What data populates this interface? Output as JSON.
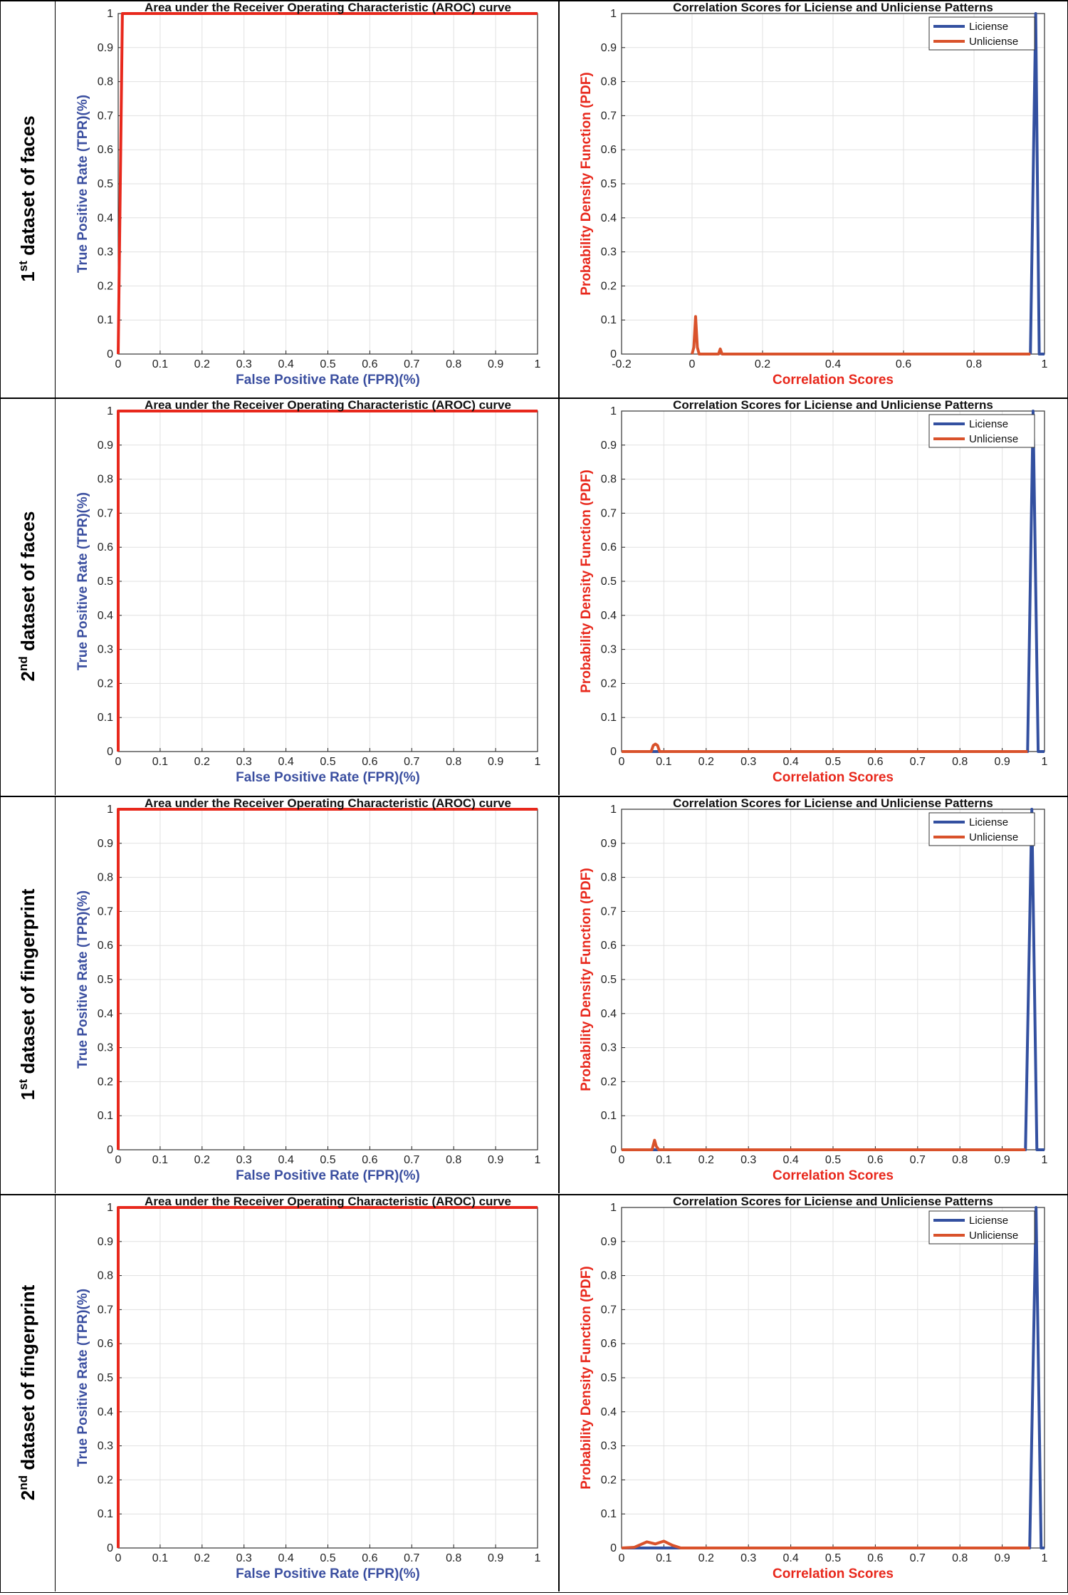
{
  "rows": [
    {
      "label": {
        "ordinal": "1",
        "suffix": "st",
        "rest": " dataset of faces"
      },
      "roc": {
        "type": "line",
        "title": "Area under the Receiver Operating Characteristic (AROC) curve",
        "xlabel": "False Positive Rate (FPR)(%)",
        "ylabel": "True Positive Rate (TPR)(%)",
        "xlim": [
          0,
          1
        ],
        "ylim": [
          0,
          1
        ],
        "xticks": [
          "0",
          "0.1",
          "0.2",
          "0.3",
          "0.4",
          "0.5",
          "0.6",
          "0.7",
          "0.8",
          "0.9",
          "1"
        ],
        "yticks": [
          "0",
          "0.1",
          "0.2",
          "0.3",
          "0.4",
          "0.5",
          "0.6",
          "0.7",
          "0.8",
          "0.9",
          "1"
        ],
        "grid": true,
        "series": [
          {
            "name": "ROC",
            "color": "#e8281c",
            "x": [
              0,
              0.01,
              1
            ],
            "y": [
              0,
              1,
              1
            ]
          }
        ]
      },
      "pdf": {
        "type": "line",
        "title": "Correlation Scores for Liciense and Unliciense Patterns",
        "xlabel": "Correlation Scores",
        "ylabel": "Probability Density Function (PDF)",
        "xlim": [
          -0.2,
          1
        ],
        "ylim": [
          0,
          1
        ],
        "xticks": [
          "-0.2",
          "0",
          "0.2",
          "0.4",
          "0.6",
          "0.8",
          "1"
        ],
        "yticks": [
          "0",
          "0.1",
          "0.2",
          "0.3",
          "0.4",
          "0.5",
          "0.6",
          "0.7",
          "0.8",
          "0.9",
          "1"
        ],
        "grid": true,
        "legend_position": "top-right",
        "series": [
          {
            "name": "Liciense",
            "color": "#3350a0",
            "x": [
              0.96,
              0.975,
              0.985,
              1.0
            ],
            "y": [
              0,
              1.0,
              0,
              0
            ]
          },
          {
            "name": "Unliciense",
            "color": "#d9522b",
            "x": [
              0.0,
              0.005,
              0.01,
              0.015,
              0.02,
              0.075,
              0.08,
              0.085,
              0.96
            ],
            "y": [
              0,
              0.02,
              0.11,
              0.02,
              0,
              0,
              0.015,
              0,
              0
            ]
          }
        ]
      }
    },
    {
      "label": {
        "ordinal": "2",
        "suffix": "nd",
        "rest": " dataset of faces"
      },
      "roc": {
        "type": "line",
        "title": "Area under the Receiver Operating Characteristic (AROC) curve",
        "xlabel": "False Positive Rate (FPR)(%)",
        "ylabel": "True Positive Rate (TPR)(%)",
        "xlim": [
          0,
          1
        ],
        "ylim": [
          0,
          1
        ],
        "xticks": [
          "0",
          "0.1",
          "0.2",
          "0.3",
          "0.4",
          "0.5",
          "0.6",
          "0.7",
          "0.8",
          "0.9",
          "1"
        ],
        "yticks": [
          "0",
          "0.1",
          "0.2",
          "0.3",
          "0.4",
          "0.5",
          "0.6",
          "0.7",
          "0.8",
          "0.9",
          "1"
        ],
        "grid": true,
        "series": [
          {
            "name": "ROC",
            "color": "#e8281c",
            "x": [
              0,
              0,
              1
            ],
            "y": [
              0,
              1,
              1
            ]
          }
        ]
      },
      "pdf": {
        "type": "line",
        "title": "Correlation Scores for Liciense and Unliciense Patterns",
        "xlabel": "Correlation Scores",
        "ylabel": "Probability Density Function (PDF)",
        "xlim": [
          0,
          1
        ],
        "ylim": [
          0,
          1
        ],
        "xticks": [
          "0",
          "0.1",
          "0.2",
          "0.3",
          "0.4",
          "0.5",
          "0.6",
          "0.7",
          "0.8",
          "0.9",
          "1"
        ],
        "yticks": [
          "0",
          "0.1",
          "0.2",
          "0.3",
          "0.4",
          "0.5",
          "0.6",
          "0.7",
          "0.8",
          "0.9",
          "1"
        ],
        "grid": true,
        "legend_position": "top-right",
        "series": [
          {
            "name": "Liciense",
            "color": "#3350a0",
            "x": [
              0,
              0.96,
              0.973,
              0.985,
              1.0
            ],
            "y": [
              0,
              0,
              1.0,
              0,
              0
            ]
          },
          {
            "name": "Unliciense",
            "color": "#d9522b",
            "x": [
              0.0,
              0.07,
              0.075,
              0.08,
              0.085,
              0.09,
              0.96
            ],
            "y": [
              0,
              0,
              0.018,
              0.022,
              0.018,
              0,
              0
            ]
          }
        ]
      }
    },
    {
      "label": {
        "ordinal": "1",
        "suffix": "st",
        "rest": " dataset of fingerprint"
      },
      "roc": {
        "type": "line",
        "title": "Area under the Receiver Operating Characteristic (AROC) curve",
        "xlabel": "False Positive Rate (FPR)(%)",
        "ylabel": "True Positive Rate (TPR)(%)",
        "xlim": [
          0,
          1
        ],
        "ylim": [
          0,
          1
        ],
        "xticks": [
          "0",
          "0.1",
          "0.2",
          "0.3",
          "0.4",
          "0.5",
          "0.6",
          "0.7",
          "0.8",
          "0.9",
          "1"
        ],
        "yticks": [
          "0",
          "0.1",
          "0.2",
          "0.3",
          "0.4",
          "0.5",
          "0.6",
          "0.7",
          "0.8",
          "0.9",
          "1"
        ],
        "grid": true,
        "series": [
          {
            "name": "ROC",
            "color": "#e8281c",
            "x": [
              0,
              0,
              1
            ],
            "y": [
              0,
              1,
              1
            ]
          }
        ]
      },
      "pdf": {
        "type": "line",
        "title": "Correlation Scores for Liciense and Unliciense Patterns",
        "xlabel": "Correlation Scores",
        "ylabel": "Probability Density Function (PDF)",
        "xlim": [
          0,
          1
        ],
        "ylim": [
          0,
          1
        ],
        "xticks": [
          "0",
          "0.1",
          "0.2",
          "0.3",
          "0.4",
          "0.5",
          "0.6",
          "0.7",
          "0.8",
          "0.9",
          "1"
        ],
        "yticks": [
          "0",
          "0.1",
          "0.2",
          "0.3",
          "0.4",
          "0.5",
          "0.6",
          "0.7",
          "0.8",
          "0.9",
          "1"
        ],
        "grid": true,
        "legend_position": "top-right",
        "series": [
          {
            "name": "Liciense",
            "color": "#3350a0",
            "x": [
              0,
              0.955,
              0.97,
              0.982,
              1.0
            ],
            "y": [
              0,
              0,
              1.0,
              0,
              0
            ]
          },
          {
            "name": "Unliciense",
            "color": "#d9522b",
            "x": [
              0.0,
              0.072,
              0.078,
              0.082,
              0.088,
              0.955
            ],
            "y": [
              0,
              0,
              0.028,
              0.01,
              0,
              0
            ]
          }
        ]
      }
    },
    {
      "label": {
        "ordinal": "2",
        "suffix": "nd",
        "rest": " dataset of fingerprint"
      },
      "roc": {
        "type": "line",
        "title": "Area under the Receiver Operating Characteristic (AROC) curve",
        "xlabel": "False Positive Rate (FPR)(%)",
        "ylabel": "True Positive Rate (TPR)(%)",
        "xlim": [
          0,
          1
        ],
        "ylim": [
          0,
          1
        ],
        "xticks": [
          "0",
          "0.1",
          "0.2",
          "0.3",
          "0.4",
          "0.5",
          "0.6",
          "0.7",
          "0.8",
          "0.9",
          "1"
        ],
        "yticks": [
          "0",
          "0.1",
          "0.2",
          "0.3",
          "0.4",
          "0.5",
          "0.6",
          "0.7",
          "0.8",
          "0.9",
          "1"
        ],
        "grid": true,
        "series": [
          {
            "name": "ROC",
            "color": "#e8281c",
            "x": [
              0,
              0,
              1
            ],
            "y": [
              0,
              1,
              1
            ]
          }
        ]
      },
      "pdf": {
        "type": "line",
        "title": "Correlation Scores for Liciense and Unliciense Patterns",
        "xlabel": "Correlation Scores",
        "ylabel": "Probability Density Function (PDF)",
        "xlim": [
          0,
          1
        ],
        "ylim": [
          0,
          1
        ],
        "xticks": [
          "0",
          "0.1",
          "0.2",
          "0.3",
          "0.4",
          "0.5",
          "0.6",
          "0.7",
          "0.8",
          "0.9",
          "1"
        ],
        "yticks": [
          "0",
          "0.1",
          "0.2",
          "0.3",
          "0.4",
          "0.5",
          "0.6",
          "0.7",
          "0.8",
          "0.9",
          "1"
        ],
        "grid": true,
        "legend_position": "top-right",
        "series": [
          {
            "name": "Liciense",
            "color": "#3350a0",
            "x": [
              0,
              0.965,
              0.98,
              0.992,
              1.0
            ],
            "y": [
              0,
              0,
              1.0,
              0,
              0
            ]
          },
          {
            "name": "Unliciense",
            "color": "#d9522b",
            "x": [
              0.0,
              0.03,
              0.06,
              0.08,
              0.1,
              0.12,
              0.14,
              0.965
            ],
            "y": [
              0,
              0.002,
              0.018,
              0.012,
              0.02,
              0.008,
              0,
              0
            ]
          }
        ]
      }
    }
  ]
}
